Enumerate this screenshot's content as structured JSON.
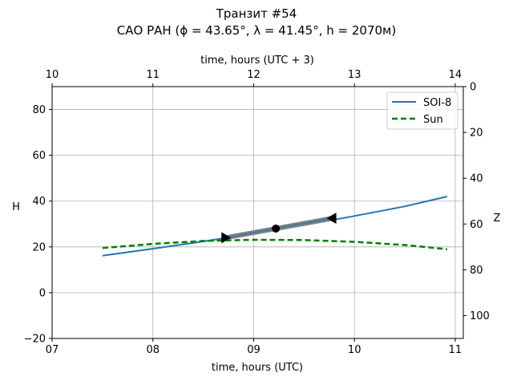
{
  "chart_data": {
    "type": "line",
    "title_line1": "Транзит #54",
    "title_line2": "САО РАН (ϕ = 43.65°, λ = 41.45°, h = 2070м)",
    "xlabel": "time, hours (UTC)",
    "xlabel_top": "time, hours (UTC + 3)",
    "ylabel": "H",
    "ylabel_right": "Z",
    "xlim": [
      7.0,
      11.08
    ],
    "ylim": [
      -20,
      90
    ],
    "grid": true,
    "legend_position": "top-right",
    "x_ticks": [
      {
        "value": 7,
        "label": "07"
      },
      {
        "value": 8,
        "label": "08"
      },
      {
        "value": 9,
        "label": "09"
      },
      {
        "value": 10,
        "label": "10"
      },
      {
        "value": 11,
        "label": "11"
      }
    ],
    "x_ticks_top": [
      {
        "value": 7,
        "label": "10"
      },
      {
        "value": 8,
        "label": "11"
      },
      {
        "value": 9,
        "label": "12"
      },
      {
        "value": 10,
        "label": "13"
      },
      {
        "value": 11,
        "label": "14"
      }
    ],
    "y_ticks": [
      {
        "value": -20,
        "label": "−20"
      },
      {
        "value": 0,
        "label": "0"
      },
      {
        "value": 20,
        "label": "20"
      },
      {
        "value": 40,
        "label": "40"
      },
      {
        "value": 60,
        "label": "60"
      },
      {
        "value": 80,
        "label": "80"
      }
    ],
    "y_ticks_right": [
      {
        "value": 90,
        "label": "0"
      },
      {
        "value": 70,
        "label": "20"
      },
      {
        "value": 50,
        "label": "40"
      },
      {
        "value": 30,
        "label": "60"
      },
      {
        "value": 10,
        "label": "80"
      },
      {
        "value": -10,
        "label": "100"
      }
    ],
    "series": [
      {
        "name": "SOI-8",
        "color": "#1f77b4",
        "style": "solid",
        "x": [
          7.5,
          8.0,
          8.5,
          9.0,
          9.5,
          10.0,
          10.5,
          10.92
        ],
        "y": [
          16.2,
          19.2,
          22.4,
          25.8,
          29.5,
          33.5,
          37.7,
          42.0
        ]
      },
      {
        "name": "Sun",
        "color": "#008000",
        "style": "dashed",
        "x": [
          7.5,
          8.0,
          8.5,
          9.0,
          9.5,
          10.0,
          10.5,
          10.92
        ],
        "y": [
          19.5,
          21.3,
          22.6,
          23.1,
          23.0,
          22.2,
          20.8,
          19.0
        ]
      }
    ],
    "transit": {
      "color": "#808080",
      "start": {
        "x": 8.72,
        "y": 24.0
      },
      "mid": {
        "x": 9.22,
        "y": 28.0
      },
      "end": {
        "x": 9.78,
        "y": 32.5
      }
    }
  }
}
